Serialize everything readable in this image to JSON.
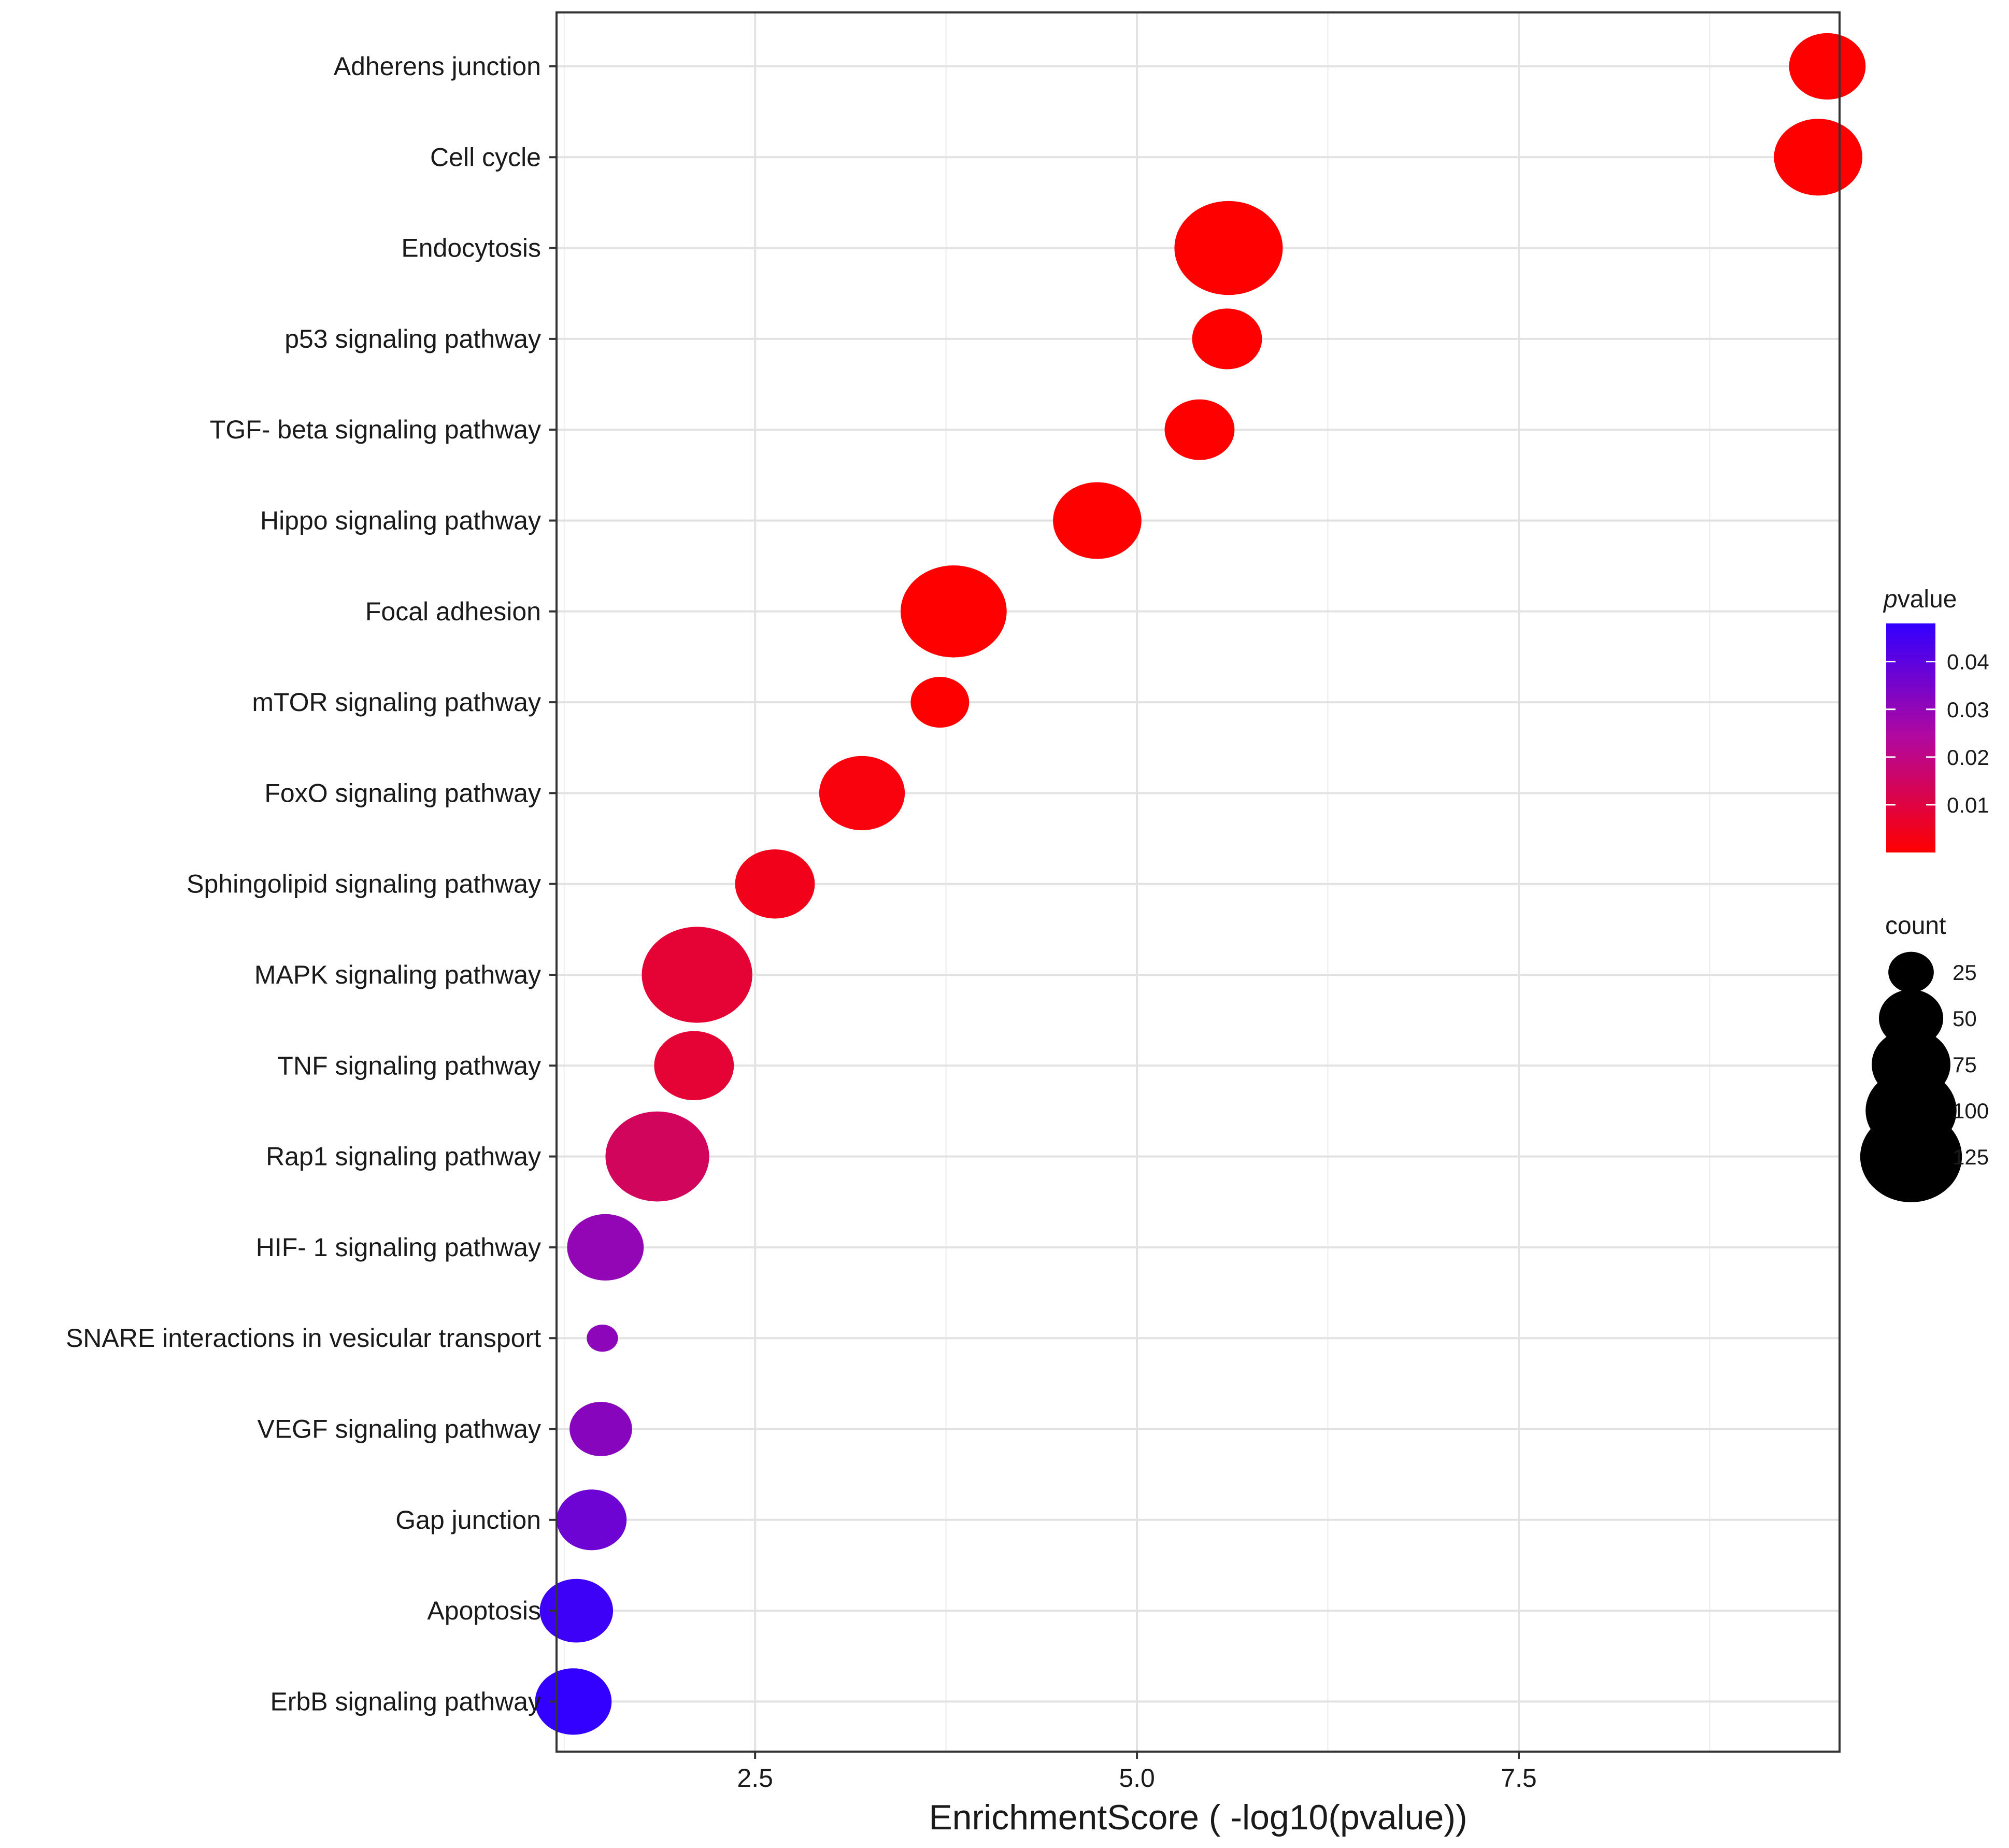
{
  "chart_data": {
    "type": "scatter",
    "title": "",
    "xlabel": "EnrichmentScore ( -log10(pvalue))",
    "ylabel": "",
    "xlim": [
      1.2,
      9.6
    ],
    "xticks": [
      2.5,
      5.0,
      7.5
    ],
    "xtick_labels": [
      "2.5",
      "5.0",
      "7.5"
    ],
    "grid": true,
    "points": [
      {
        "term": "Adherens junction",
        "x": 9.52,
        "count": 60,
        "pvalue": 0.0
      },
      {
        "term": "Cell cycle",
        "x": 9.46,
        "count": 80,
        "pvalue": 0.0
      },
      {
        "term": "Endocytosis",
        "x": 5.6,
        "count": 120,
        "pvalue": 0.0
      },
      {
        "term": "p53 signaling pathway",
        "x": 5.59,
        "count": 50,
        "pvalue": 0.0
      },
      {
        "term": "TGF- beta signaling pathway",
        "x": 5.41,
        "count": 50,
        "pvalue": 0.0
      },
      {
        "term": "Hippo signaling pathway",
        "x": 4.74,
        "count": 80,
        "pvalue": 0.0
      },
      {
        "term": "Focal adhesion",
        "x": 3.8,
        "count": 115,
        "pvalue": 0.0
      },
      {
        "term": "mTOR signaling pathway",
        "x": 3.71,
        "count": 35,
        "pvalue": 0.0
      },
      {
        "term": "FoxO signaling pathway",
        "x": 3.2,
        "count": 75,
        "pvalue": 0.002
      },
      {
        "term": "Sphingolipid signaling pathway",
        "x": 2.63,
        "count": 65,
        "pvalue": 0.004
      },
      {
        "term": "MAPK signaling pathway",
        "x": 2.12,
        "count": 125,
        "pvalue": 0.008
      },
      {
        "term": "TNF signaling pathway",
        "x": 2.1,
        "count": 65,
        "pvalue": 0.008
      },
      {
        "term": "Rap1 signaling pathway",
        "x": 1.86,
        "count": 110,
        "pvalue": 0.014
      },
      {
        "term": "HIF- 1 signaling pathway",
        "x": 1.52,
        "count": 60,
        "pvalue": 0.03
      },
      {
        "term": "SNARE interactions in vesicular transport",
        "x": 1.5,
        "count": 10,
        "pvalue": 0.031
      },
      {
        "term": "VEGF signaling pathway",
        "x": 1.49,
        "count": 40,
        "pvalue": 0.032
      },
      {
        "term": "Gap junction",
        "x": 1.43,
        "count": 50,
        "pvalue": 0.037
      },
      {
        "term": "Apoptosis",
        "x": 1.33,
        "count": 55,
        "pvalue": 0.046
      },
      {
        "term": "ErbB signaling pathway",
        "x": 1.31,
        "count": 60,
        "pvalue": 0.048
      }
    ],
    "color_legend": {
      "title_prefix": "p",
      "title_suffix": "value",
      "range": [
        0.0,
        0.048
      ],
      "low_color": "#ff0000",
      "high_color": "#3300ff",
      "ticks": [
        0.01,
        0.02,
        0.03,
        0.04
      ],
      "tick_labels": [
        "0.01",
        "0.02",
        "0.03",
        "0.04"
      ],
      "placement": "right"
    },
    "size_legend": {
      "title": "count",
      "values": [
        25,
        50,
        75,
        100,
        125
      ],
      "labels": [
        "25",
        "50",
        "75",
        "100",
        "125"
      ],
      "placement": "right"
    }
  }
}
